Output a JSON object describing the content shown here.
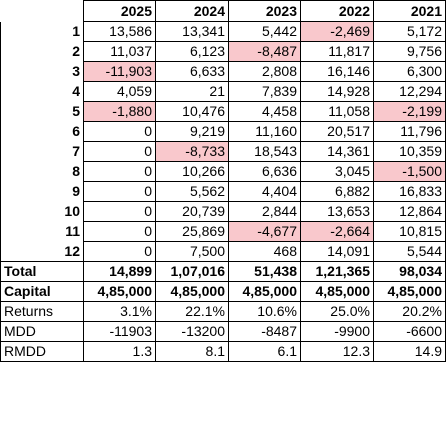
{
  "headers": [
    "2025",
    "2024",
    "2023",
    "2022",
    "2021"
  ],
  "months": [
    {
      "label": "1",
      "values": [
        "13,586",
        "13,341",
        "5,442",
        "-2,469",
        "5,172"
      ],
      "pink": [
        false,
        false,
        false,
        true,
        false
      ]
    },
    {
      "label": "2",
      "values": [
        "11,037",
        "6,123",
        "-8,487",
        "11,817",
        "9,756"
      ],
      "pink": [
        false,
        false,
        true,
        false,
        false
      ]
    },
    {
      "label": "3",
      "values": [
        "-11,903",
        "6,633",
        "2,808",
        "16,146",
        "6,300"
      ],
      "pink": [
        true,
        false,
        false,
        false,
        false
      ]
    },
    {
      "label": "4",
      "values": [
        "4,059",
        "21",
        "7,839",
        "14,928",
        "12,294"
      ],
      "pink": [
        false,
        false,
        false,
        false,
        false
      ]
    },
    {
      "label": "5",
      "values": [
        "-1,880",
        "10,476",
        "4,458",
        "11,058",
        "-2,199"
      ],
      "pink": [
        true,
        false,
        false,
        false,
        true
      ]
    },
    {
      "label": "6",
      "values": [
        "0",
        "9,219",
        "11,160",
        "20,517",
        "11,796"
      ],
      "pink": [
        false,
        false,
        false,
        false,
        false
      ]
    },
    {
      "label": "7",
      "values": [
        "0",
        "-8,733",
        "18,543",
        "14,361",
        "10,359"
      ],
      "pink": [
        false,
        true,
        false,
        false,
        false
      ]
    },
    {
      "label": "8",
      "values": [
        "0",
        "10,266",
        "6,636",
        "3,045",
        "-1,500"
      ],
      "pink": [
        false,
        false,
        false,
        false,
        true
      ]
    },
    {
      "label": "9",
      "values": [
        "0",
        "5,562",
        "4,404",
        "6,882",
        "16,833"
      ],
      "pink": [
        false,
        false,
        false,
        false,
        false
      ]
    },
    {
      "label": "10",
      "values": [
        "0",
        "20,739",
        "2,844",
        "13,653",
        "12,864"
      ],
      "pink": [
        false,
        false,
        false,
        false,
        false
      ]
    },
    {
      "label": "11",
      "values": [
        "0",
        "25,869",
        "-4,677",
        "-2,664",
        "10,815"
      ],
      "pink": [
        false,
        false,
        true,
        true,
        false
      ]
    },
    {
      "label": "12",
      "values": [
        "0",
        "7,500",
        "468",
        "14,091",
        "5,544"
      ],
      "pink": [
        false,
        false,
        false,
        false,
        false
      ]
    }
  ],
  "summary": [
    {
      "label": "Total",
      "bold": true,
      "values": [
        "14,899",
        "1,07,016",
        "51,438",
        "1,21,365",
        "98,034"
      ]
    },
    {
      "label": "Capital",
      "bold": true,
      "values": [
        "4,85,000",
        "4,85,000",
        "4,85,000",
        "4,85,000",
        "4,85,000"
      ]
    },
    {
      "label": "Returns",
      "bold": false,
      "values": [
        "3.1%",
        "22.1%",
        "10.6%",
        "25.0%",
        "20.2%"
      ]
    },
    {
      "label": "MDD",
      "bold": false,
      "values": [
        "-11903",
        "-13200",
        "-8487",
        "-9900",
        "-6600"
      ]
    },
    {
      "label": "RMDD",
      "bold": false,
      "values": [
        "1.3",
        "8.1",
        "6.1",
        "12.3",
        "14.9"
      ]
    }
  ],
  "colors": {
    "negative_highlight": "#f9c8cc"
  }
}
